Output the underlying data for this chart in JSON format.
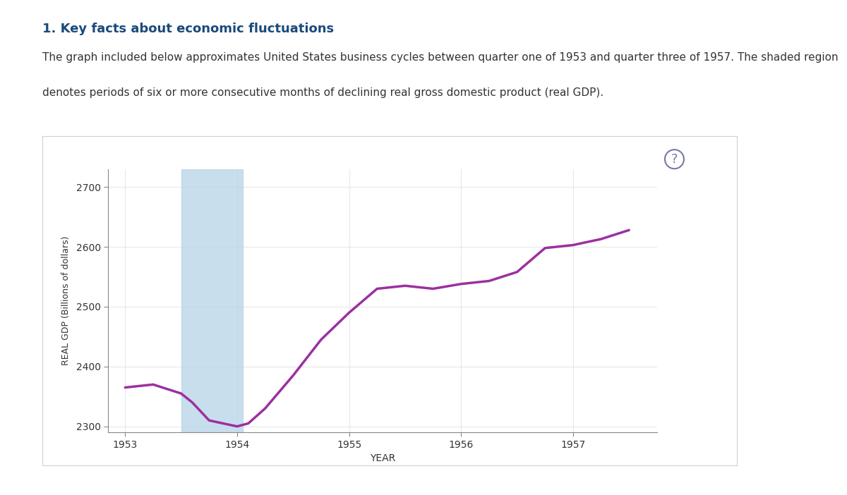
{
  "title": "1. Key facts about economic fluctuations",
  "subtitle_lines": [
    "The graph included below approximates United States business cycles between quarter one of 1953 and quarter three of 1957. The shaded region",
    "denotes periods of six or more consecutive months of declining real gross domestic product (real GDP)."
  ],
  "ylabel": "REAL GDP (Billions of dollars)",
  "xlabel": "YEAR",
  "xlim": [
    1952.85,
    1957.75
  ],
  "ylim": [
    2290,
    2730
  ],
  "yticks": [
    2300,
    2400,
    2500,
    2600,
    2700
  ],
  "xticks": [
    1953,
    1954,
    1955,
    1956,
    1957
  ],
  "shade_start": 1953.5,
  "shade_end": 1954.05,
  "gdp_data": {
    "x": [
      1953.0,
      1953.25,
      1953.5,
      1953.6,
      1953.75,
      1954.0,
      1954.1,
      1954.25,
      1954.5,
      1954.75,
      1955.0,
      1955.25,
      1955.5,
      1955.75,
      1956.0,
      1956.25,
      1956.5,
      1956.75,
      1957.0,
      1957.25,
      1957.5
    ],
    "y": [
      2365,
      2370,
      2355,
      2340,
      2310,
      2300,
      2305,
      2330,
      2385,
      2445,
      2490,
      2530,
      2535,
      2530,
      2538,
      2543,
      2558,
      2598,
      2603,
      2613,
      2628
    ]
  },
  "line_color": "#9b30a0",
  "line_width": 2.5,
  "shade_color": "#b8d4e8",
  "shade_alpha": 0.75,
  "grid_color": "#e8e8e8",
  "figure_bg": "#ffffff",
  "page_bg": "#ffffff",
  "inner_box_bg": "#ffffff",
  "inner_box_border": "#d0d0d0",
  "tan_line_color": "#c8b060",
  "title_color": "#1a4a7a",
  "title_fontsize": 13,
  "body_fontsize": 11,
  "axis_fontsize": 10,
  "ylabel_fontsize": 9,
  "qmark_color": "#7777aa",
  "qmark_fontsize": 13
}
